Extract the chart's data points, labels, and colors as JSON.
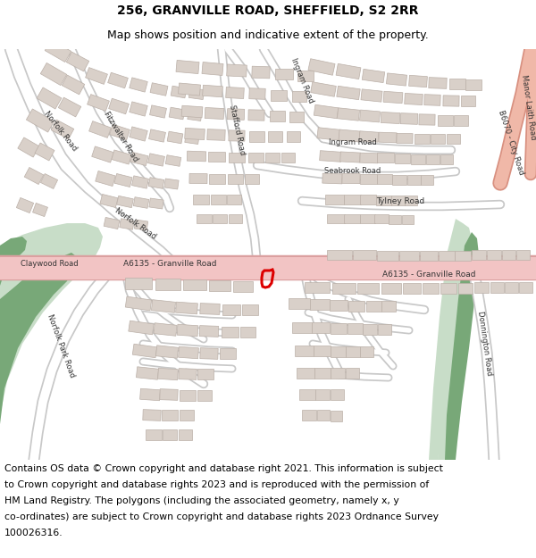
{
  "title_line1": "256, GRANVILLE ROAD, SHEFFIELD, S2 2RR",
  "title_line2": "Map shows position and indicative extent of the property.",
  "footer_text": "Contains OS data © Crown copyright and database right 2021. This information is subject to Crown copyright and database rights 2023 and is reproduced with the permission of HM Land Registry. The polygons (including the associated geometry, namely x, y co-ordinates) are subject to Crown copyright and database rights 2023 Ordnance Survey 100026316.",
  "map_bg": "#f5f4f1",
  "road_major_color": "#f2c4c4",
  "road_major_border": "#dba0a0",
  "road_minor_color": "#ffffff",
  "road_minor_border": "#c8c8c8",
  "green_dark": "#78a878",
  "green_light": "#c8ddc8",
  "building_fill": "#d9d0c9",
  "building_edge": "#bbb0a8",
  "plot_color": "#dd0000",
  "salmon_road": "#f0b8a8",
  "salmon_border": "#d89080",
  "title_fs": 10,
  "subtitle_fs": 9,
  "footer_fs": 7.8
}
